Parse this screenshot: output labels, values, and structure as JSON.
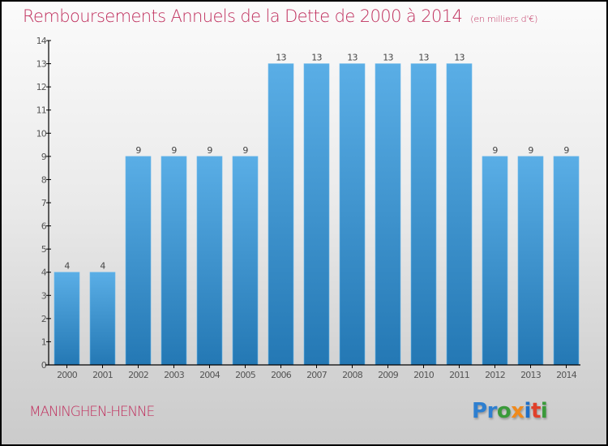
{
  "header": {
    "title": "Remboursements Annuels de la Dette de 2000 à 2014",
    "subtitle": "(en milliers d'€)"
  },
  "footer": {
    "commune": "MANINGHEN-HENNE",
    "logo_letters": [
      {
        "char": "P",
        "color": "#2e7fd0"
      },
      {
        "char": "r",
        "color": "#2e7fd0"
      },
      {
        "char": "o",
        "color": "#3a9a3a"
      },
      {
        "char": "x",
        "color": "#f08a1c"
      },
      {
        "char": "i",
        "color": "#1e6fc8"
      },
      {
        "char": "t",
        "color": "#e0402a"
      },
      {
        "char": "i",
        "color": "#3a9a3a"
      }
    ]
  },
  "colors": {
    "accent": "#c0305e",
    "bar_top": "#5aaee6",
    "bar_bottom": "#2478b4"
  },
  "chart_data": {
    "type": "bar",
    "title": "Remboursements Annuels de la Dette de 2000 à 2014",
    "subtitle": "(en milliers d'€)",
    "xlabel": "",
    "ylabel": "",
    "categories": [
      "2000",
      "2001",
      "2002",
      "2003",
      "2004",
      "2005",
      "2006",
      "2007",
      "2008",
      "2009",
      "2010",
      "2011",
      "2012",
      "2013",
      "2014"
    ],
    "values": [
      4,
      4,
      9,
      9,
      9,
      9,
      13,
      13,
      13,
      13,
      13,
      13,
      9,
      9,
      9
    ],
    "data_labels": [
      "4",
      "4",
      "9",
      "9",
      "9",
      "9",
      "13",
      "13",
      "13",
      "13",
      "13",
      "13",
      "9",
      "9",
      "9"
    ],
    "ylim": [
      0,
      14
    ],
    "yticks": [
      0,
      1,
      2,
      3,
      4,
      5,
      6,
      7,
      8,
      9,
      10,
      11,
      12,
      13,
      14
    ],
    "grid": false,
    "legend": "none"
  }
}
